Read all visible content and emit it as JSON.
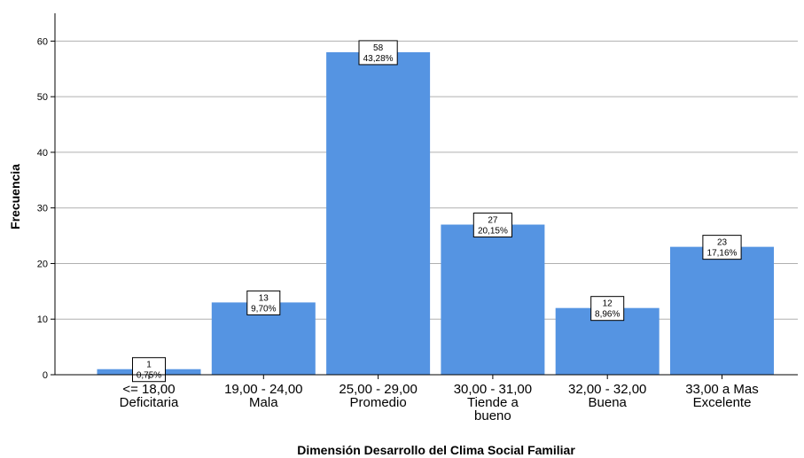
{
  "chart_data": {
    "type": "bar",
    "categories": [
      [
        "<= 18,00",
        "Deficitaria"
      ],
      [
        "19,00 - 24,00",
        "Mala"
      ],
      [
        "25,00 - 29,00",
        "Promedio"
      ],
      [
        "30,00 - 31,00",
        "Tiende a",
        "bueno"
      ],
      [
        "32,00 - 32,00",
        "Buena"
      ],
      [
        "33,00 a Mas",
        "Excelente"
      ]
    ],
    "values": [
      1,
      13,
      58,
      27,
      12,
      23
    ],
    "percent_labels": [
      "0,75%",
      "9,70%",
      "43,28%",
      "20,15%",
      "8,96%",
      "17,16%"
    ],
    "xlabel": "Dimensión Desarrollo del Clima Social Familiar",
    "ylabel": "Frecuencia",
    "ylim": [
      0,
      65
    ],
    "yticks": [
      0,
      10,
      20,
      30,
      40,
      50,
      60
    ],
    "grid": true,
    "bar_color": "#5594e2"
  }
}
